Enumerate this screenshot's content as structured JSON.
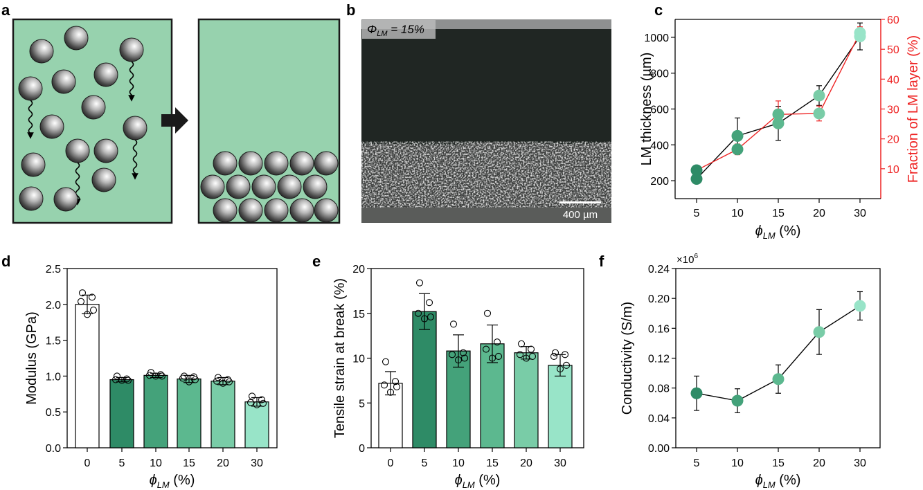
{
  "panels": {
    "a": {
      "label": "a"
    },
    "b": {
      "label": "b",
      "phi_symbol": "Φ",
      "phi_sub": "LM",
      "phi_rest": " = 15%",
      "scale_bar": "400 µm"
    },
    "c": {
      "label": "c"
    },
    "d": {
      "label": "d"
    },
    "e": {
      "label": "e"
    },
    "f": {
      "label": "f",
      "multiplier_base": "×10",
      "multiplier_exp": "6"
    }
  },
  "xlabel_parts": {
    "symbol": "ϕ",
    "sub": "LM",
    "rest": " (%)"
  },
  "colors": {
    "phi5": "#2e8b66",
    "phi10": "#44a27a",
    "phi15": "#5cb88f",
    "phi20": "#79cca7",
    "phi30": "#98e4c8",
    "schematic_bg": "#97d2ae",
    "red_axis": "#ee2222"
  },
  "chart_data": [
    {
      "panel": "c",
      "type": "line",
      "categories": [
        "5",
        "10",
        "15",
        "20",
        "30"
      ],
      "ylabel": "LM thickness (µm)",
      "ylim": [
        100,
        1100
      ],
      "yticks": [
        200,
        400,
        600,
        800,
        1000
      ],
      "y2label": "Fraction of LM layer (%)",
      "y2lim": [
        0,
        60
      ],
      "y2ticks": [
        10,
        20,
        30,
        40,
        50,
        60
      ],
      "series": [
        {
          "axis": "left",
          "line_color": "#000000",
          "values": [
            210,
            450,
            520,
            675,
            1005
          ],
          "errors": [
            20,
            100,
            95,
            55,
            75
          ]
        },
        {
          "axis": "right",
          "line_color": "#ee2222",
          "values": [
            9.5,
            16.5,
            28.2,
            28.5,
            55.5
          ],
          "errors": [
            1.5,
            1.8,
            4.5,
            2.5,
            2.0
          ]
        }
      ]
    },
    {
      "panel": "d",
      "type": "bar",
      "categories": [
        "0",
        "5",
        "10",
        "15",
        "20",
        "30"
      ],
      "values": [
        2.0,
        0.95,
        1.01,
        0.96,
        0.93,
        0.64
      ],
      "errors": [
        0.13,
        0.03,
        0.03,
        0.05,
        0.05,
        0.06
      ],
      "points": [
        [
          2.16,
          2.1,
          2.04,
          1.92,
          1.86
        ],
        [
          1.0,
          0.96,
          0.95,
          0.94,
          0.94
        ],
        [
          1.05,
          1.02,
          1.01,
          1.0,
          1.0
        ],
        [
          1.0,
          0.99,
          0.97,
          0.95,
          0.92
        ],
        [
          0.98,
          0.95,
          0.93,
          0.92,
          0.9
        ],
        [
          0.72,
          0.67,
          0.63,
          0.62,
          0.6
        ]
      ],
      "ylabel": "Modulus (GPa)",
      "ylim": [
        0,
        2.5
      ],
      "yticks": [
        0.0,
        0.5,
        1.0,
        1.5,
        2.0,
        2.5
      ]
    },
    {
      "panel": "e",
      "type": "bar",
      "categories": [
        "0",
        "5",
        "10",
        "15",
        "20",
        "30"
      ],
      "values": [
        7.2,
        15.2,
        10.8,
        11.6,
        10.6,
        9.2
      ],
      "errors": [
        1.3,
        2.0,
        1.8,
        2.1,
        0.7,
        1.2
      ],
      "points": [
        [
          9.6,
          7.4,
          7.0,
          6.8,
          6.2
        ],
        [
          18.4,
          16.2,
          15.0,
          14.6,
          14.4
        ],
        [
          13.8,
          10.6,
          10.4,
          10.0,
          9.8
        ],
        [
          15.0,
          11.8,
          11.0,
          10.2,
          10.0
        ],
        [
          11.6,
          11.0,
          10.4,
          10.2,
          10.0
        ],
        [
          10.6,
          10.4,
          10.2,
          9.2,
          8.8
        ]
      ],
      "ylabel": "Tensile strain at break (%)",
      "ylim": [
        0,
        20
      ],
      "yticks": [
        0,
        5,
        10,
        15,
        20
      ]
    },
    {
      "panel": "f",
      "type": "line",
      "categories": [
        "5",
        "10",
        "15",
        "20",
        "30"
      ],
      "values": [
        0.073,
        0.063,
        0.092,
        0.155,
        0.19
      ],
      "errors": [
        0.023,
        0.016,
        0.019,
        0.03,
        0.019
      ],
      "ylabel": "Conductivity (S/m)",
      "ylim": [
        0,
        0.24
      ],
      "yticks": [
        "0.00",
        "0.04",
        "0.08",
        "0.12",
        "0.16",
        "0.20",
        "0.24"
      ]
    }
  ]
}
